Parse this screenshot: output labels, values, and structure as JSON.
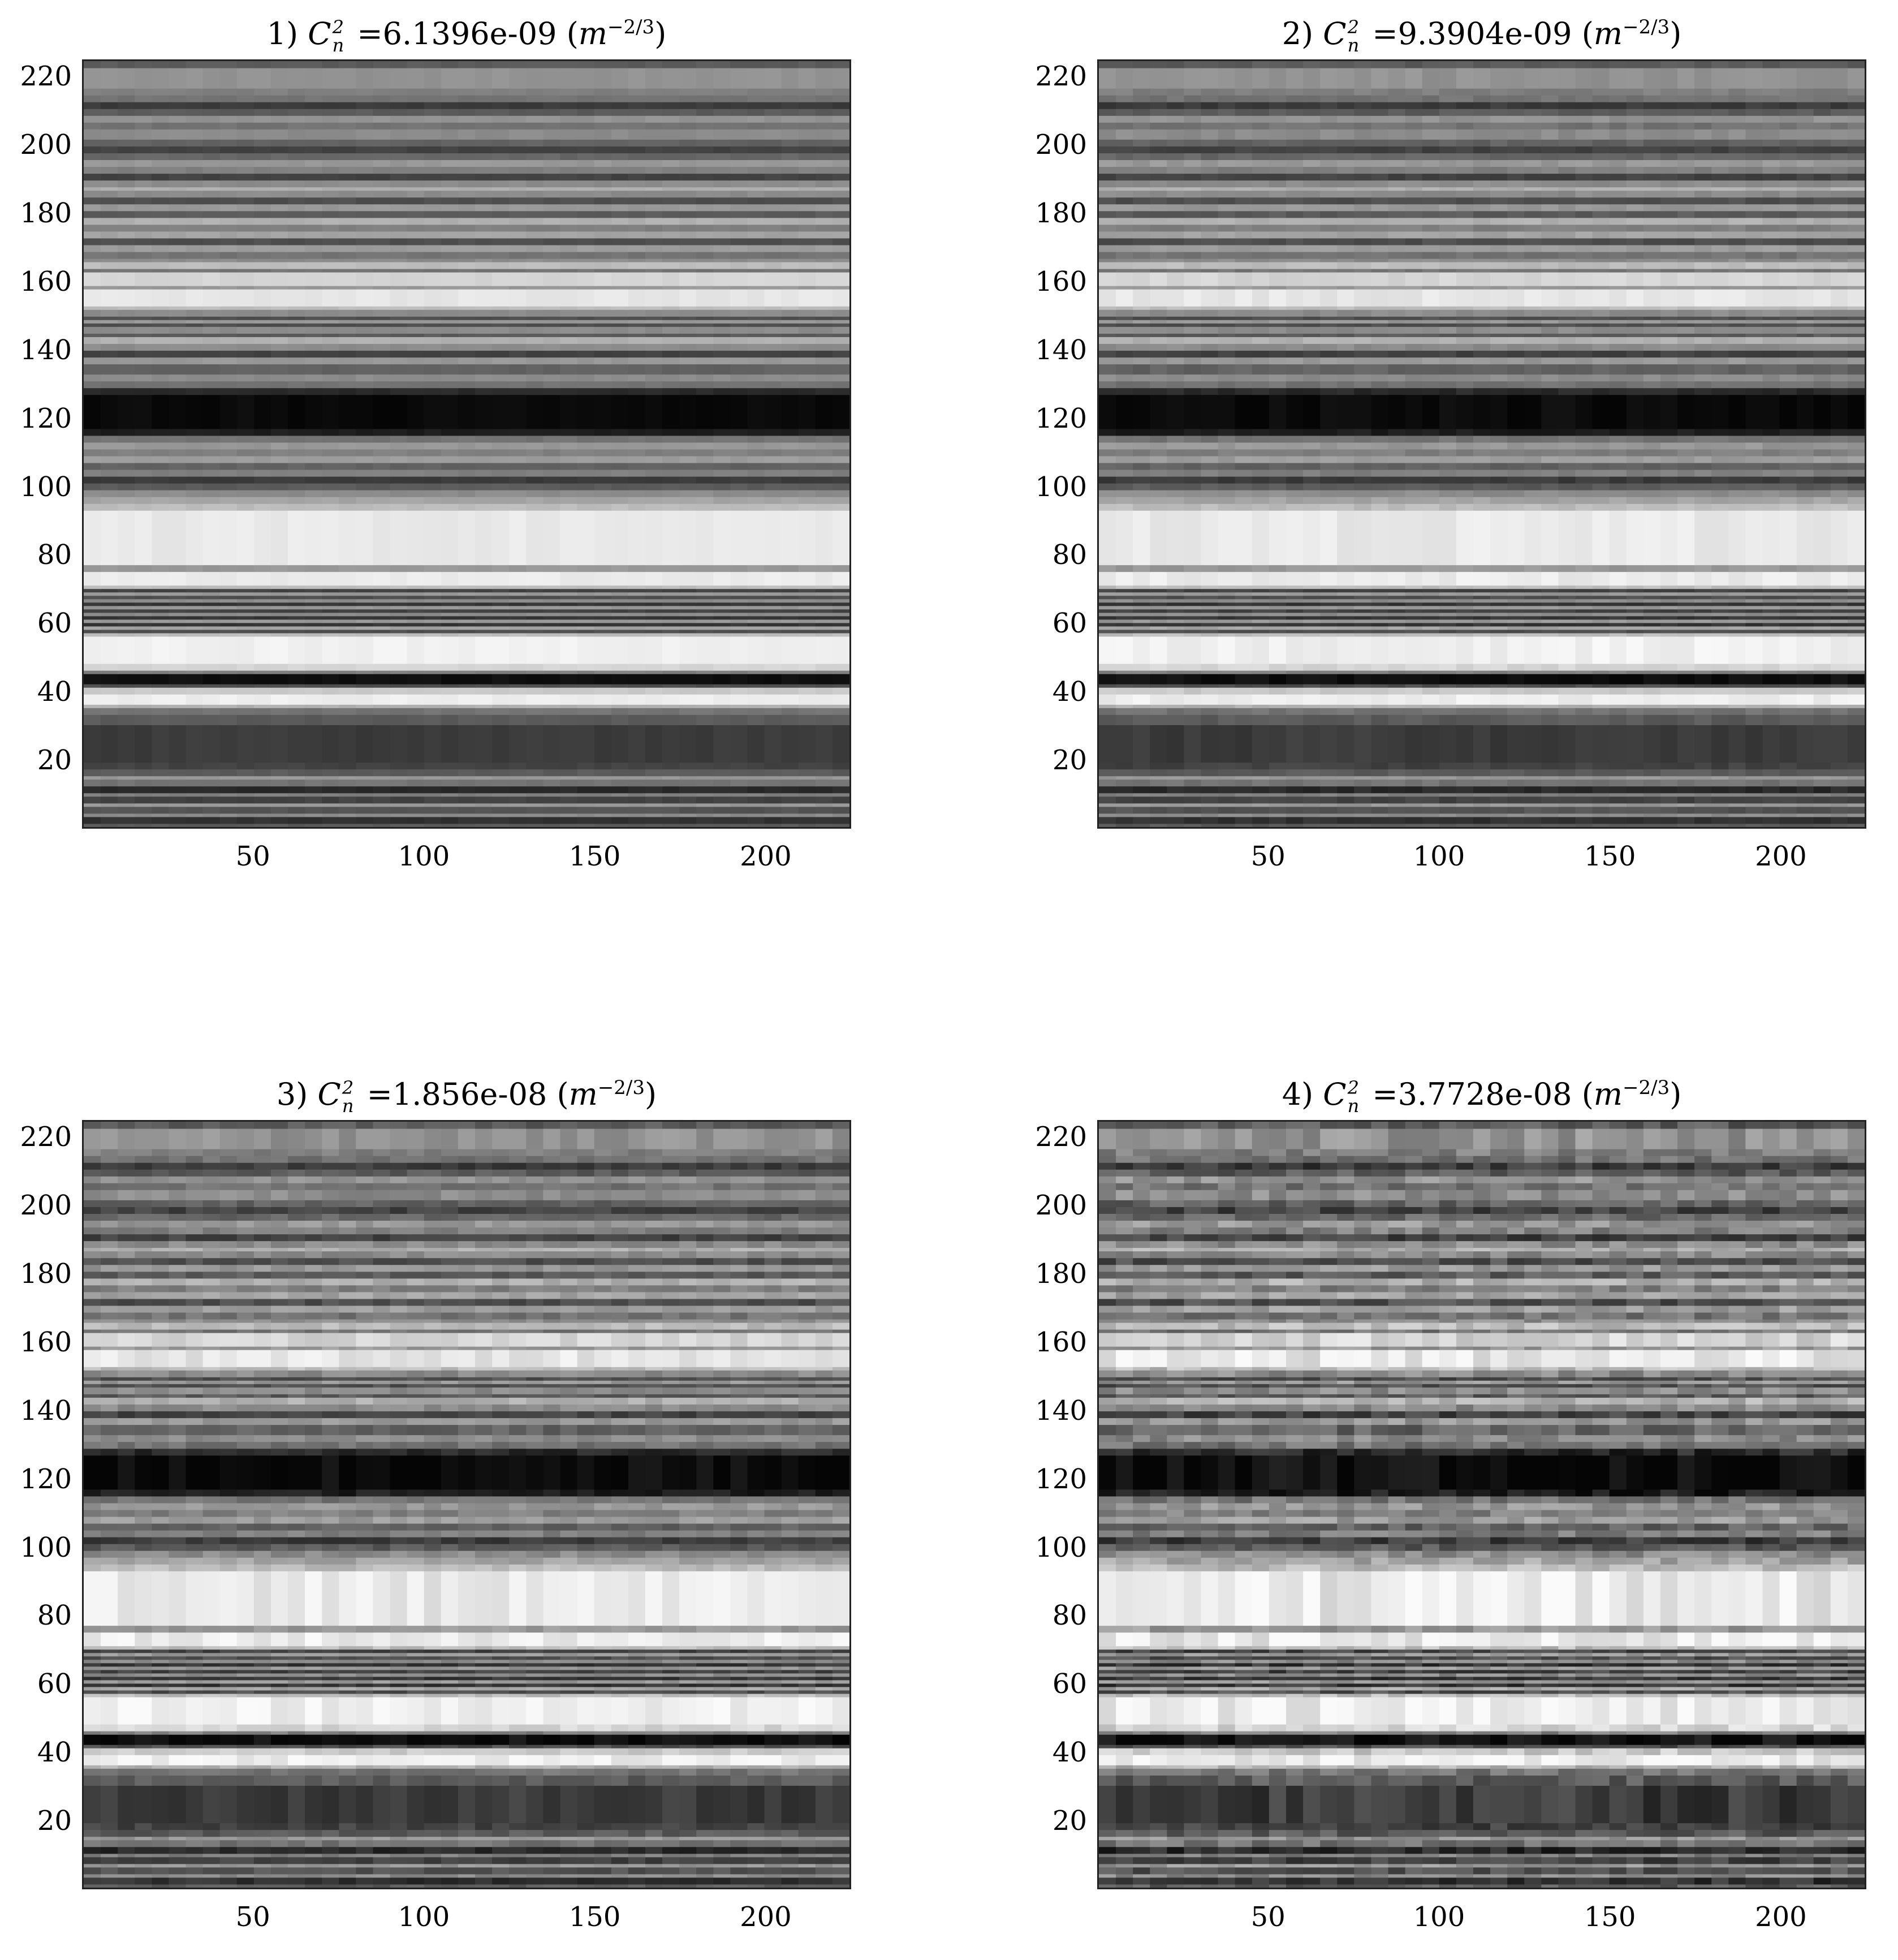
{
  "chart_data": [
    {
      "type": "heatmap",
      "title": {
        "prefix": "1) ",
        "symbol": "C",
        "sup": "2",
        "sub": "n",
        "eq": " =",
        "value": "6.1396e-09",
        "unit_base": "m",
        "unit_exp": "−2/3"
      },
      "xlabel": "",
      "ylabel": "",
      "xlim": [
        0,
        225
      ],
      "ylim": [
        0,
        225
      ],
      "xticks": [
        50,
        100,
        150,
        200
      ],
      "yticks": [
        20,
        40,
        60,
        80,
        100,
        120,
        140,
        160,
        180,
        200,
        220
      ],
      "colormap": "gray",
      "noise": 0.02
    },
    {
      "type": "heatmap",
      "title": {
        "prefix": "2) ",
        "symbol": "C",
        "sup": "2",
        "sub": "n",
        "eq": " =",
        "value": "9.3904e-09",
        "unit_base": "m",
        "unit_exp": "−2/3"
      },
      "xlabel": "",
      "ylabel": "",
      "xlim": [
        0,
        225
      ],
      "ylim": [
        0,
        225
      ],
      "xticks": [
        50,
        100,
        150,
        200
      ],
      "yticks": [
        20,
        40,
        60,
        80,
        100,
        120,
        140,
        160,
        180,
        200,
        220
      ],
      "colormap": "gray",
      "noise": 0.035
    },
    {
      "type": "heatmap",
      "title": {
        "prefix": "3) ",
        "symbol": "C",
        "sup": "2",
        "sub": "n",
        "eq": " =",
        "value": "1.856e-08",
        "unit_base": "m",
        "unit_exp": "−2/3"
      },
      "xlabel": "",
      "ylabel": "",
      "xlim": [
        0,
        225
      ],
      "ylim": [
        0,
        225
      ],
      "xticks": [
        50,
        100,
        150,
        200
      ],
      "yticks": [
        20,
        40,
        60,
        80,
        100,
        120,
        140,
        160,
        180,
        200,
        220
      ],
      "colormap": "gray",
      "noise": 0.06
    },
    {
      "type": "heatmap",
      "title": {
        "prefix": "4) ",
        "symbol": "C",
        "sup": "2",
        "sub": "n",
        "eq": " =",
        "value": "3.7728e-08",
        "unit_base": "m",
        "unit_exp": "−2/3"
      },
      "xlabel": "",
      "ylabel": "",
      "xlim": [
        0,
        225
      ],
      "ylim": [
        0,
        225
      ],
      "xticks": [
        50,
        100,
        150,
        200
      ],
      "yticks": [
        20,
        40,
        60,
        80,
        100,
        120,
        140,
        160,
        180,
        200,
        220
      ],
      "colormap": "gray",
      "noise": 0.1
    }
  ],
  "row_profile": [
    {
      "y0": 0,
      "y1": 1,
      "level": 0.35
    },
    {
      "y0": 1,
      "y1": 3,
      "level": 0.18
    },
    {
      "y0": 3,
      "y1": 4,
      "level": 0.55
    },
    {
      "y0": 4,
      "y1": 6,
      "level": 0.32
    },
    {
      "y0": 6,
      "y1": 7,
      "level": 0.6
    },
    {
      "y0": 7,
      "y1": 9,
      "level": 0.25
    },
    {
      "y0": 9,
      "y1": 10,
      "level": 0.5
    },
    {
      "y0": 10,
      "y1": 12,
      "level": 0.15
    },
    {
      "y0": 12,
      "y1": 14,
      "level": 0.45
    },
    {
      "y0": 14,
      "y1": 15,
      "level": 0.6
    },
    {
      "y0": 15,
      "y1": 17,
      "level": 0.35
    },
    {
      "y0": 17,
      "y1": 19,
      "level": 0.25
    },
    {
      "y0": 19,
      "y1": 30,
      "level": 0.22
    },
    {
      "y0": 30,
      "y1": 33,
      "level": 0.35
    },
    {
      "y0": 33,
      "y1": 35,
      "level": 0.45
    },
    {
      "y0": 35,
      "y1": 36,
      "level": 0.7
    },
    {
      "y0": 36,
      "y1": 39,
      "level": 0.95
    },
    {
      "y0": 39,
      "y1": 41,
      "level": 0.8
    },
    {
      "y0": 41,
      "y1": 42,
      "level": 0.3
    },
    {
      "y0": 42,
      "y1": 45,
      "level": 0.04
    },
    {
      "y0": 45,
      "y1": 46,
      "level": 0.5
    },
    {
      "y0": 46,
      "y1": 48,
      "level": 0.85
    },
    {
      "y0": 48,
      "y1": 56,
      "level": 0.96
    },
    {
      "y0": 56,
      "y1": 57,
      "level": 0.75
    },
    {
      "y0": 57,
      "y1": 58,
      "level": 0.3
    },
    {
      "y0": 58,
      "y1": 59,
      "level": 0.65
    },
    {
      "y0": 59,
      "y1": 60,
      "level": 0.2
    },
    {
      "y0": 60,
      "y1": 61,
      "level": 0.6
    },
    {
      "y0": 61,
      "y1": 62,
      "level": 0.2
    },
    {
      "y0": 62,
      "y1": 63,
      "level": 0.55
    },
    {
      "y0": 63,
      "y1": 64,
      "level": 0.25
    },
    {
      "y0": 64,
      "y1": 65,
      "level": 0.6
    },
    {
      "y0": 65,
      "y1": 66,
      "level": 0.2
    },
    {
      "y0": 66,
      "y1": 67,
      "level": 0.55
    },
    {
      "y0": 67,
      "y1": 68,
      "level": 0.3
    },
    {
      "y0": 68,
      "y1": 69,
      "level": 0.6
    },
    {
      "y0": 69,
      "y1": 70,
      "level": 0.25
    },
    {
      "y0": 70,
      "y1": 71,
      "level": 0.75
    },
    {
      "y0": 71,
      "y1": 75,
      "level": 0.94
    },
    {
      "y0": 75,
      "y1": 77,
      "level": 0.6
    },
    {
      "y0": 77,
      "y1": 93,
      "level": 0.93
    },
    {
      "y0": 93,
      "y1": 95,
      "level": 0.75
    },
    {
      "y0": 95,
      "y1": 97,
      "level": 0.65
    },
    {
      "y0": 97,
      "y1": 99,
      "level": 0.55
    },
    {
      "y0": 99,
      "y1": 101,
      "level": 0.35
    },
    {
      "y0": 101,
      "y1": 103,
      "level": 0.22
    },
    {
      "y0": 103,
      "y1": 105,
      "level": 0.5
    },
    {
      "y0": 105,
      "y1": 107,
      "level": 0.38
    },
    {
      "y0": 107,
      "y1": 109,
      "level": 0.62
    },
    {
      "y0": 109,
      "y1": 111,
      "level": 0.5
    },
    {
      "y0": 111,
      "y1": 113,
      "level": 0.6
    },
    {
      "y0": 113,
      "y1": 115,
      "level": 0.45
    },
    {
      "y0": 115,
      "y1": 117,
      "level": 0.1
    },
    {
      "y0": 117,
      "y1": 127,
      "level": 0.02
    },
    {
      "y0": 127,
      "y1": 129,
      "level": 0.15
    },
    {
      "y0": 129,
      "y1": 131,
      "level": 0.45
    },
    {
      "y0": 131,
      "y1": 133,
      "level": 0.55
    },
    {
      "y0": 133,
      "y1": 136,
      "level": 0.38
    },
    {
      "y0": 136,
      "y1": 138,
      "level": 0.6
    },
    {
      "y0": 138,
      "y1": 140,
      "level": 0.25
    },
    {
      "y0": 140,
      "y1": 142,
      "level": 0.55
    },
    {
      "y0": 142,
      "y1": 144,
      "level": 0.7
    },
    {
      "y0": 144,
      "y1": 145,
      "level": 0.35
    },
    {
      "y0": 145,
      "y1": 147,
      "level": 0.55
    },
    {
      "y0": 147,
      "y1": 148,
      "level": 0.3
    },
    {
      "y0": 148,
      "y1": 149,
      "level": 0.6
    },
    {
      "y0": 149,
      "y1": 150,
      "level": 0.3
    },
    {
      "y0": 150,
      "y1": 152,
      "level": 0.55
    },
    {
      "y0": 152,
      "y1": 153,
      "level": 0.75
    },
    {
      "y0": 153,
      "y1": 158,
      "level": 0.92
    },
    {
      "y0": 158,
      "y1": 159,
      "level": 0.6
    },
    {
      "y0": 159,
      "y1": 163,
      "level": 0.85
    },
    {
      "y0": 163,
      "y1": 164,
      "level": 0.45
    },
    {
      "y0": 164,
      "y1": 166,
      "level": 0.75
    },
    {
      "y0": 166,
      "y1": 167,
      "level": 0.55
    },
    {
      "y0": 167,
      "y1": 169,
      "level": 0.45
    },
    {
      "y0": 169,
      "y1": 171,
      "level": 0.62
    },
    {
      "y0": 171,
      "y1": 173,
      "level": 0.3
    },
    {
      "y0": 173,
      "y1": 175,
      "level": 0.65
    },
    {
      "y0": 175,
      "y1": 177,
      "level": 0.5
    },
    {
      "y0": 177,
      "y1": 179,
      "level": 0.7
    },
    {
      "y0": 179,
      "y1": 181,
      "level": 0.35
    },
    {
      "y0": 181,
      "y1": 183,
      "level": 0.6
    },
    {
      "y0": 183,
      "y1": 185,
      "level": 0.3
    },
    {
      "y0": 185,
      "y1": 187,
      "level": 0.55
    },
    {
      "y0": 187,
      "y1": 188,
      "level": 0.7
    },
    {
      "y0": 188,
      "y1": 190,
      "level": 0.55
    },
    {
      "y0": 190,
      "y1": 192,
      "level": 0.25
    },
    {
      "y0": 192,
      "y1": 194,
      "level": 0.5
    },
    {
      "y0": 194,
      "y1": 196,
      "level": 0.6
    },
    {
      "y0": 196,
      "y1": 198,
      "level": 0.4
    },
    {
      "y0": 198,
      "y1": 200,
      "level": 0.25
    },
    {
      "y0": 200,
      "y1": 202,
      "level": 0.38
    },
    {
      "y0": 202,
      "y1": 205,
      "level": 0.55
    },
    {
      "y0": 205,
      "y1": 207,
      "level": 0.45
    },
    {
      "y0": 207,
      "y1": 209,
      "level": 0.58
    },
    {
      "y0": 209,
      "y1": 211,
      "level": 0.35
    },
    {
      "y0": 211,
      "y1": 213,
      "level": 0.22
    },
    {
      "y0": 213,
      "y1": 215,
      "level": 0.45
    },
    {
      "y0": 215,
      "y1": 217,
      "level": 0.5
    },
    {
      "y0": 217,
      "y1": 223,
      "level": 0.58
    },
    {
      "y0": 223,
      "y1": 225,
      "level": 0.35
    }
  ]
}
